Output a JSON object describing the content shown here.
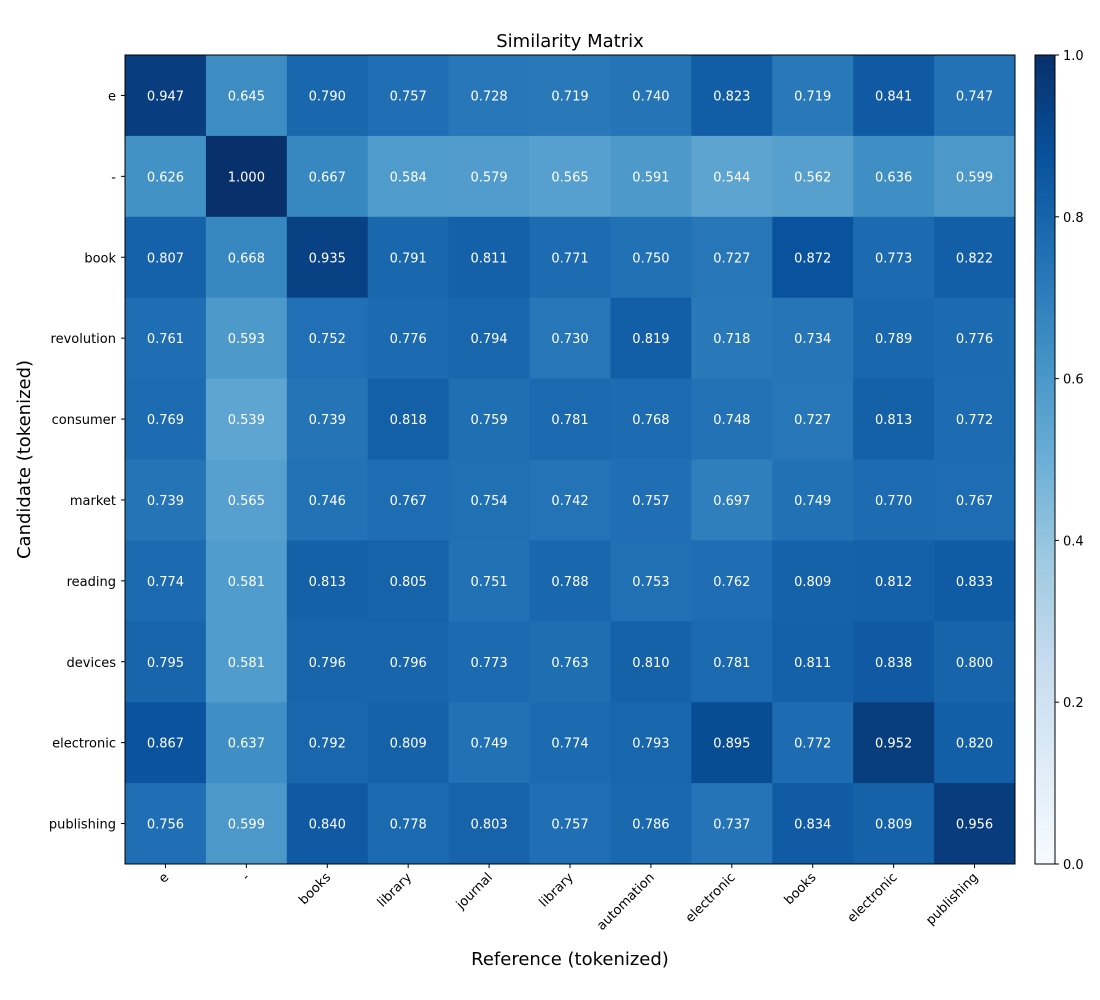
{
  "chart_data": {
    "type": "heatmap",
    "title": "Similarity Matrix",
    "xlabel": "Reference (tokenized)",
    "ylabel": "Candidate (tokenized)",
    "x_categories": [
      "e",
      "-",
      "books",
      "library",
      "journal",
      "library",
      "automation",
      "electronic",
      "books",
      "electronic",
      "publishing"
    ],
    "y_categories": [
      "e",
      "-",
      "book",
      "revolution",
      "consumer",
      "market",
      "reading",
      "devices",
      "electronic",
      "publishing"
    ],
    "values": [
      [
        "0.947",
        "0.645",
        "0.790",
        "0.757",
        "0.728",
        "0.719",
        "0.740",
        "0.823",
        "0.719",
        "0.841",
        "0.747"
      ],
      [
        "0.626",
        "1.000",
        "0.667",
        "0.584",
        "0.579",
        "0.565",
        "0.591",
        "0.544",
        "0.562",
        "0.636",
        "0.599"
      ],
      [
        "0.807",
        "0.668",
        "0.935",
        "0.791",
        "0.811",
        "0.771",
        "0.750",
        "0.727",
        "0.872",
        "0.773",
        "0.822"
      ],
      [
        "0.761",
        "0.593",
        "0.752",
        "0.776",
        "0.794",
        "0.730",
        "0.819",
        "0.718",
        "0.734",
        "0.789",
        "0.776"
      ],
      [
        "0.769",
        "0.539",
        "0.739",
        "0.818",
        "0.759",
        "0.781",
        "0.768",
        "0.748",
        "0.727",
        "0.813",
        "0.772"
      ],
      [
        "0.739",
        "0.565",
        "0.746",
        "0.767",
        "0.754",
        "0.742",
        "0.757",
        "0.697",
        "0.749",
        "0.770",
        "0.767"
      ],
      [
        "0.774",
        "0.581",
        "0.813",
        "0.805",
        "0.751",
        "0.788",
        "0.753",
        "0.762",
        "0.809",
        "0.812",
        "0.833"
      ],
      [
        "0.795",
        "0.581",
        "0.796",
        "0.796",
        "0.773",
        "0.763",
        "0.810",
        "0.781",
        "0.811",
        "0.838",
        "0.800"
      ],
      [
        "0.867",
        "0.637",
        "0.792",
        "0.809",
        "0.749",
        "0.774",
        "0.793",
        "0.895",
        "0.772",
        "0.952",
        "0.820"
      ],
      [
        "0.756",
        "0.599",
        "0.840",
        "0.778",
        "0.803",
        "0.757",
        "0.786",
        "0.737",
        "0.834",
        "0.809",
        "0.956"
      ]
    ],
    "colorbar": {
      "range": [
        0,
        1
      ],
      "ticks": [
        "0.0",
        "0.2",
        "0.4",
        "0.6",
        "0.8",
        "1.0"
      ]
    },
    "colormap": "Blues",
    "text_color": "#ffffff"
  }
}
